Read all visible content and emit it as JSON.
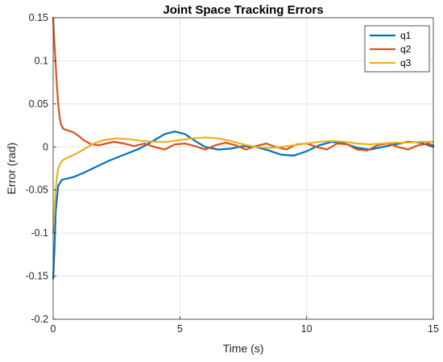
{
  "chart_data": {
    "type": "line",
    "title": "Joint Space Tracking Errors",
    "xlabel": "Time (s)",
    "ylabel": "Error (rad)",
    "xlim": [
      0,
      15
    ],
    "ylim": [
      -0.2,
      0.15
    ],
    "xticks": [
      0,
      5,
      10,
      15
    ],
    "xtick_labels": [
      "0",
      "5",
      "10",
      "15"
    ],
    "yticks": [
      -0.2,
      -0.15,
      -0.1,
      -0.05,
      0,
      0.05,
      0.1,
      0.15
    ],
    "ytick_labels": [
      "-0.2",
      "-0.15",
      "-0.1",
      "-0.05",
      "0",
      "0.05",
      "0.1",
      "0.15"
    ],
    "grid": true,
    "legend_position": "top-right",
    "series": [
      {
        "name": "q1",
        "color": "#0072BD",
        "x": [
          0,
          0.05,
          0.1,
          0.2,
          0.35,
          0.5,
          0.8,
          1.2,
          1.7,
          2.2,
          2.8,
          3.4,
          4.0,
          4.4,
          4.8,
          5.2,
          5.6,
          6.0,
          6.5,
          7.0,
          7.5,
          8.0,
          8.5,
          9.0,
          9.5,
          10.0,
          10.5,
          11.0,
          11.5,
          12.0,
          12.5,
          13.0,
          13.5,
          14.0,
          14.5,
          15.0
        ],
        "y": [
          -0.153,
          -0.12,
          -0.075,
          -0.045,
          -0.038,
          -0.037,
          -0.035,
          -0.03,
          -0.023,
          -0.016,
          -0.009,
          -0.002,
          0.008,
          0.015,
          0.018,
          0.015,
          0.007,
          0.0,
          -0.003,
          -0.002,
          0.001,
          0.0,
          -0.004,
          -0.009,
          -0.01,
          -0.005,
          0.002,
          0.006,
          0.004,
          -0.001,
          -0.003,
          0.0,
          0.003,
          0.006,
          0.005,
          0.0
        ]
      },
      {
        "name": "q2",
        "color": "#D95319",
        "x": [
          0,
          0.05,
          0.1,
          0.15,
          0.2,
          0.25,
          0.3,
          0.4,
          0.5,
          0.6,
          0.8,
          1.0,
          1.2,
          1.5,
          1.8,
          2.1,
          2.4,
          2.8,
          3.2,
          3.6,
          4.0,
          4.4,
          4.8,
          5.2,
          5.6,
          6.0,
          6.4,
          6.8,
          7.2,
          7.6,
          8.0,
          8.4,
          8.8,
          9.2,
          9.6,
          10.0,
          10.4,
          10.8,
          11.2,
          11.6,
          12.0,
          12.4,
          12.8,
          13.2,
          13.6,
          14.0,
          14.4,
          14.8,
          15.0
        ],
        "y": [
          0.15,
          0.12,
          0.095,
          0.07,
          0.05,
          0.036,
          0.027,
          0.021,
          0.02,
          0.019,
          0.017,
          0.013,
          0.008,
          0.003,
          0.002,
          0.004,
          0.006,
          0.004,
          0.001,
          0.004,
          0.0,
          -0.003,
          0.003,
          0.004,
          0.001,
          -0.003,
          0.002,
          0.005,
          0.002,
          -0.003,
          0.001,
          0.004,
          0.0,
          -0.003,
          0.003,
          0.004,
          0.0,
          -0.003,
          0.004,
          0.003,
          -0.003,
          -0.004,
          0.002,
          0.004,
          0.0,
          -0.003,
          0.002,
          0.004,
          0.002
        ]
      },
      {
        "name": "q3",
        "color": "#EDB120",
        "x": [
          0,
          0.05,
          0.1,
          0.15,
          0.2,
          0.3,
          0.4,
          0.6,
          0.9,
          1.2,
          1.6,
          2.0,
          2.5,
          3.0,
          3.5,
          4.0,
          4.5,
          5.0,
          5.5,
          6.0,
          6.5,
          7.0,
          7.5,
          8.0,
          8.5,
          9.0,
          9.5,
          10.0,
          10.5,
          11.0,
          11.5,
          12.0,
          12.5,
          13.0,
          13.5,
          14.0,
          14.5,
          15.0
        ],
        "y": [
          -0.1,
          -0.075,
          -0.05,
          -0.035,
          -0.025,
          -0.018,
          -0.015,
          -0.012,
          -0.008,
          -0.003,
          0.004,
          0.008,
          0.01,
          0.009,
          0.007,
          0.006,
          0.006,
          0.008,
          0.01,
          0.011,
          0.01,
          0.007,
          0.003,
          0.0,
          -0.001,
          0.0,
          0.002,
          0.004,
          0.006,
          0.007,
          0.006,
          0.004,
          0.003,
          0.004,
          0.005,
          0.005,
          0.006,
          0.006
        ]
      }
    ]
  }
}
